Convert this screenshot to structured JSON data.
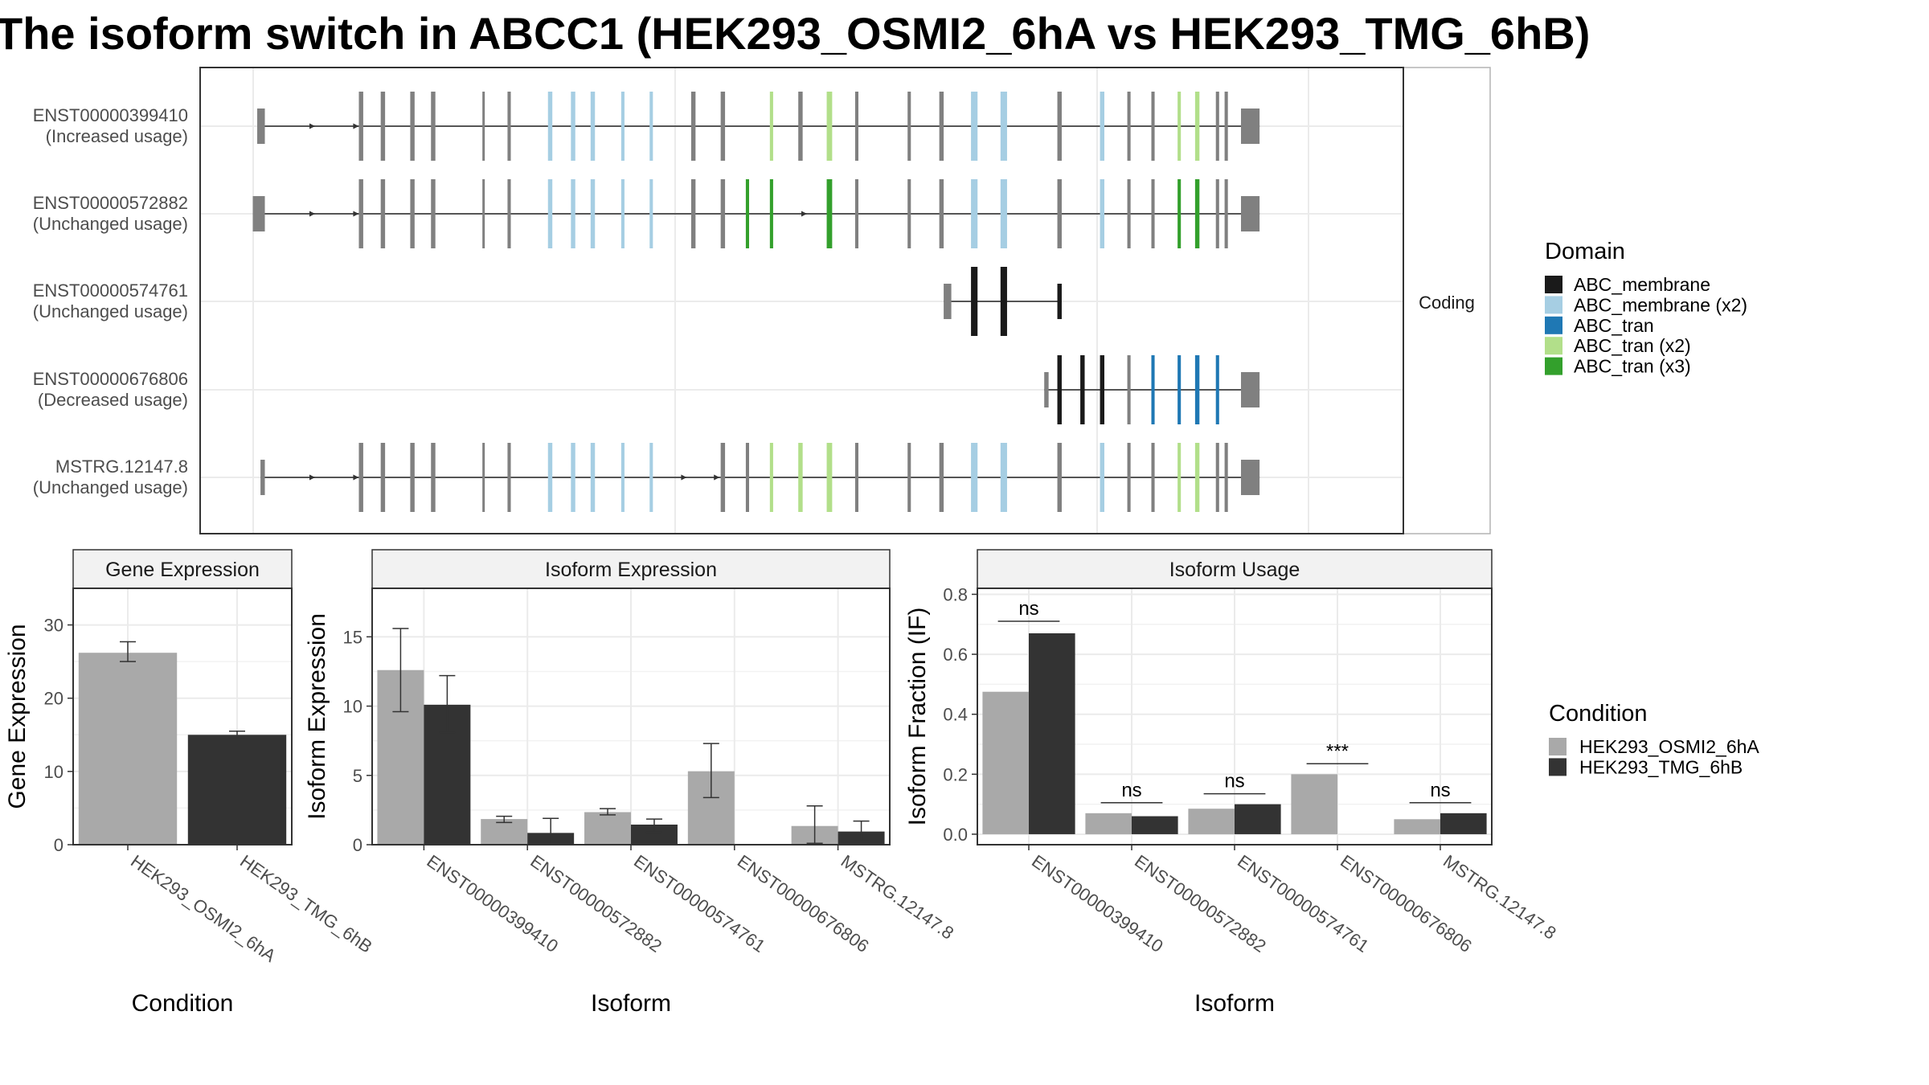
{
  "title": "The isoform switch in ABCC1 (HEK293_OSMI2_6hA vs HEK293_TMG_6hB)",
  "colors": {
    "intron_line": "#555555",
    "exon_default": "#808080",
    "cond_a": "#a9a9a9",
    "cond_b": "#333333"
  },
  "chart_data": [
    {
      "type": "transcript_structure",
      "strip_label": "Coding",
      "legend_title": "Domain",
      "domains": [
        {
          "name": "ABC_membrane",
          "color": "#1a1a1a"
        },
        {
          "name": "ABC_membrane (x2)",
          "color": "#a6cee3"
        },
        {
          "name": "ABC_tran",
          "color": "#1f78b4"
        },
        {
          "name": "ABC_tran (x2)",
          "color": "#b2df8a"
        },
        {
          "name": "ABC_tran (x3)",
          "color": "#33a02c"
        }
      ],
      "transcripts": [
        {
          "id": "ENST00000399410",
          "label": "(Increased usage)",
          "exons": [
            [
              0.0,
              0.007
            ],
            [
              0.093,
              0.097
            ],
            [
              0.113,
              0.117
            ],
            [
              0.14,
              0.144
            ],
            [
              0.159,
              0.163
            ],
            [
              0.206,
              0.208
            ],
            [
              0.229,
              0.232
            ],
            [
              0.266,
              0.27,
              "ABC_membrane (x2)"
            ],
            [
              0.287,
              0.291,
              "ABC_membrane (x2)"
            ],
            [
              0.305,
              0.309,
              "ABC_membrane (x2)"
            ],
            [
              0.333,
              0.336,
              "ABC_membrane (x2)"
            ],
            [
              0.359,
              0.362,
              "ABC_membrane (x2)"
            ],
            [
              0.397,
              0.401
            ],
            [
              0.424,
              0.428
            ],
            [
              0.469,
              0.472,
              "ABC_tran (x2)"
            ],
            [
              0.495,
              0.499
            ],
            [
              0.521,
              0.526,
              "ABC_tran (x2)"
            ],
            [
              0.547,
              0.55
            ],
            [
              0.595,
              0.598
            ],
            [
              0.624,
              0.628
            ],
            [
              0.653,
              0.659,
              "ABC_membrane (x2)"
            ],
            [
              0.68,
              0.686,
              "ABC_membrane (x2)"
            ],
            [
              0.732,
              0.736
            ],
            [
              0.771,
              0.775,
              "ABC_membrane (x2)"
            ],
            [
              0.796,
              0.799
            ],
            [
              0.818,
              0.821
            ],
            [
              0.842,
              0.845,
              "ABC_tran (x2)"
            ],
            [
              0.858,
              0.862,
              "ABC_tran (x2)"
            ],
            [
              0.877,
              0.88
            ],
            [
              0.885,
              0.888
            ],
            [
              0.9,
              0.917
            ]
          ],
          "arrows": [
            0.05,
            0.09
          ]
        },
        {
          "id": "ENST00000572882",
          "label": "(Unchanged usage)",
          "exons": [
            [
              -0.004,
              0.007
            ],
            [
              0.093,
              0.097
            ],
            [
              0.113,
              0.117
            ],
            [
              0.14,
              0.144
            ],
            [
              0.159,
              0.163
            ],
            [
              0.206,
              0.208
            ],
            [
              0.229,
              0.232
            ],
            [
              0.266,
              0.27,
              "ABC_membrane (x2)"
            ],
            [
              0.287,
              0.291,
              "ABC_membrane (x2)"
            ],
            [
              0.305,
              0.309,
              "ABC_membrane (x2)"
            ],
            [
              0.333,
              0.336,
              "ABC_membrane (x2)"
            ],
            [
              0.359,
              0.362,
              "ABC_membrane (x2)"
            ],
            [
              0.397,
              0.401
            ],
            [
              0.424,
              0.428
            ],
            [
              0.447,
              0.45,
              "ABC_tran (x3)"
            ],
            [
              0.469,
              0.472,
              "ABC_tran (x3)"
            ],
            [
              0.521,
              0.526,
              "ABC_tran (x3)"
            ],
            [
              0.547,
              0.55
            ],
            [
              0.595,
              0.598
            ],
            [
              0.624,
              0.628
            ],
            [
              0.653,
              0.659,
              "ABC_membrane (x2)"
            ],
            [
              0.68,
              0.686,
              "ABC_membrane (x2)"
            ],
            [
              0.732,
              0.736
            ],
            [
              0.771,
              0.775,
              "ABC_membrane (x2)"
            ],
            [
              0.796,
              0.799
            ],
            [
              0.818,
              0.821
            ],
            [
              0.842,
              0.845,
              "ABC_tran (x3)"
            ],
            [
              0.858,
              0.862,
              "ABC_tran (x3)"
            ],
            [
              0.877,
              0.88
            ],
            [
              0.885,
              0.888
            ],
            [
              0.9,
              0.917
            ]
          ],
          "arrows": [
            0.05,
            0.09,
            0.5
          ]
        },
        {
          "id": "ENST00000574761",
          "label": "(Unchanged usage)",
          "exons": [
            [
              0.628,
              0.635
            ],
            [
              0.653,
              0.659,
              "ABC_membrane"
            ],
            [
              0.68,
              0.686,
              "ABC_membrane"
            ],
            [
              0.732,
              0.736,
              "ABC_membrane"
            ]
          ],
          "arrows": []
        },
        {
          "id": "ENST00000676806",
          "label": "(Decreased usage)",
          "exons": [
            [
              0.72,
              0.724
            ],
            [
              0.732,
              0.736,
              "ABC_membrane"
            ],
            [
              0.753,
              0.757,
              "ABC_membrane"
            ],
            [
              0.771,
              0.775,
              "ABC_membrane"
            ],
            [
              0.796,
              0.799
            ],
            [
              0.818,
              0.821,
              "ABC_tran"
            ],
            [
              0.842,
              0.845,
              "ABC_tran"
            ],
            [
              0.858,
              0.862,
              "ABC_tran"
            ],
            [
              0.877,
              0.88,
              "ABC_tran"
            ],
            [
              0.9,
              0.917
            ]
          ],
          "arrows": []
        },
        {
          "id": "MSTRG.12147.8",
          "label": "(Unchanged usage)",
          "exons": [
            [
              0.003,
              0.007
            ],
            [
              0.093,
              0.097
            ],
            [
              0.113,
              0.117
            ],
            [
              0.14,
              0.144
            ],
            [
              0.159,
              0.163
            ],
            [
              0.206,
              0.208
            ],
            [
              0.229,
              0.232
            ],
            [
              0.266,
              0.27,
              "ABC_membrane (x2)"
            ],
            [
              0.287,
              0.291,
              "ABC_membrane (x2)"
            ],
            [
              0.305,
              0.309,
              "ABC_membrane (x2)"
            ],
            [
              0.333,
              0.336,
              "ABC_membrane (x2)"
            ],
            [
              0.359,
              0.362,
              "ABC_membrane (x2)"
            ],
            [
              0.424,
              0.428
            ],
            [
              0.447,
              0.45
            ],
            [
              0.469,
              0.472,
              "ABC_tran (x2)"
            ],
            [
              0.495,
              0.499,
              "ABC_tran (x2)"
            ],
            [
              0.521,
              0.526,
              "ABC_tran (x2)"
            ],
            [
              0.547,
              0.55
            ],
            [
              0.595,
              0.598
            ],
            [
              0.624,
              0.628
            ],
            [
              0.653,
              0.659,
              "ABC_membrane (x2)"
            ],
            [
              0.68,
              0.686,
              "ABC_membrane (x2)"
            ],
            [
              0.732,
              0.736
            ],
            [
              0.771,
              0.775,
              "ABC_membrane (x2)"
            ],
            [
              0.796,
              0.799
            ],
            [
              0.818,
              0.821
            ],
            [
              0.842,
              0.845,
              "ABC_tran (x2)"
            ],
            [
              0.858,
              0.862,
              "ABC_tran (x2)"
            ],
            [
              0.877,
              0.88
            ],
            [
              0.885,
              0.888
            ],
            [
              0.9,
              0.917
            ]
          ],
          "arrows": [
            0.05,
            0.09,
            0.39,
            0.42
          ]
        }
      ]
    },
    {
      "type": "bar",
      "strip": "Gene Expression",
      "xlabel": "Condition",
      "ylabel": "Gene Expression",
      "ylim": [
        0,
        35
      ],
      "yticks": [
        0,
        10,
        20,
        30
      ],
      "categories": [
        "HEK293_OSMI2_6hA",
        "HEK293_TMG_6hB"
      ],
      "values": [
        26.2,
        15.0
      ],
      "err_low": [
        25.0,
        14.6
      ],
      "err_high": [
        27.7,
        15.5
      ]
    },
    {
      "type": "bar",
      "strip": "Isoform Expression",
      "xlabel": "Isoform",
      "ylabel": "Isoform Expression",
      "ylim": [
        0,
        18.5
      ],
      "yticks": [
        0,
        5,
        10,
        15
      ],
      "categories": [
        "ENST00000399410",
        "ENST00000572882",
        "ENST00000574761",
        "ENST00000676806",
        "MSTRG.12147.8"
      ],
      "series": [
        {
          "values": [
            12.6,
            1.85,
            2.35,
            5.3,
            1.35
          ],
          "err_low": [
            9.6,
            1.6,
            2.15,
            3.4,
            0.1
          ],
          "err_high": [
            15.6,
            2.05,
            2.6,
            7.3,
            2.8
          ]
        },
        {
          "values": [
            10.1,
            0.85,
            1.45,
            0.0,
            0.95
          ],
          "err_low": [
            8.1,
            0.0,
            0.9,
            0.0,
            0.3
          ],
          "err_high": [
            12.2,
            1.9,
            1.85,
            0.0,
            1.7
          ]
        }
      ]
    },
    {
      "type": "bar",
      "strip": "Isoform Usage",
      "xlabel": "Isoform",
      "ylabel": "Isoform Fraction (IF)",
      "ylim": [
        -0.035,
        0.82
      ],
      "yticks": [
        0.0,
        0.2,
        0.4,
        0.6,
        0.8
      ],
      "ytick_labels": [
        "0.0",
        "0.2",
        "0.4",
        "0.6",
        "0.8"
      ],
      "categories": [
        "ENST00000399410",
        "ENST00000572882",
        "ENST00000574761",
        "ENST00000676806",
        "MSTRG.12147.8"
      ],
      "series": [
        {
          "values": [
            0.475,
            0.07,
            0.085,
            0.2,
            0.05
          ]
        },
        {
          "values": [
            0.67,
            0.06,
            0.1,
            0.0,
            0.07
          ]
        }
      ],
      "significance": [
        "ns",
        "ns",
        "ns",
        "***",
        "ns"
      ],
      "sig_y": [
        0.71,
        0.105,
        0.135,
        0.235,
        0.105
      ]
    }
  ],
  "condition_legend": {
    "title": "Condition",
    "items": [
      "HEK293_OSMI2_6hA",
      "HEK293_TMG_6hB"
    ]
  }
}
